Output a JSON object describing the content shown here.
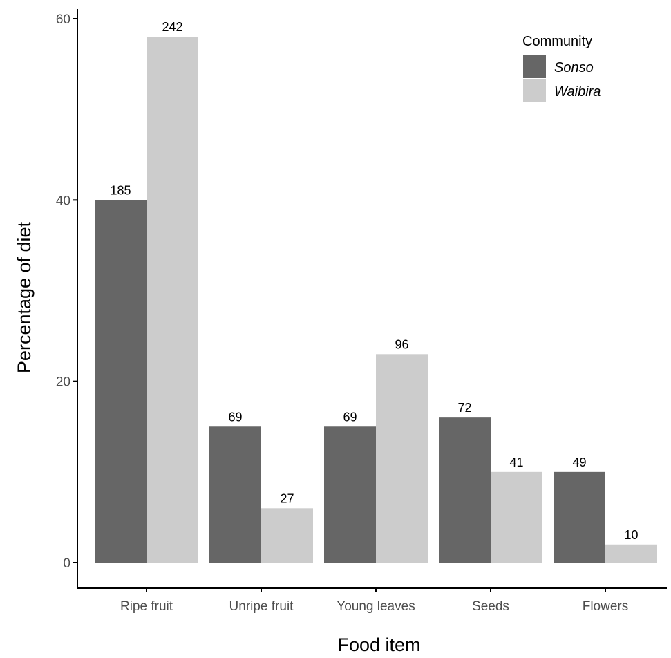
{
  "chart_data": {
    "type": "bar",
    "xlabel": "Food item",
    "ylabel": "Percentage of diet",
    "categories": [
      "Ripe fruit",
      "Unripe fruit",
      "Young leaves",
      "Seeds",
      "Flowers"
    ],
    "ylim": [
      0,
      60
    ],
    "yticks": [
      "0",
      "20",
      "40",
      "60"
    ],
    "grid": false,
    "series": [
      {
        "name": "Sonso",
        "color": "#666666",
        "values": [
          40,
          15,
          15,
          16,
          10
        ],
        "labels": [
          "185",
          "69",
          "69",
          "72",
          "49"
        ]
      },
      {
        "name": "Waibira",
        "color": "#cccccc",
        "values": [
          58,
          6,
          23,
          10,
          2
        ],
        "labels": [
          "242",
          "27",
          "96",
          "41",
          "10"
        ]
      }
    ],
    "legend": {
      "title": "Community",
      "position": "top-right"
    }
  }
}
